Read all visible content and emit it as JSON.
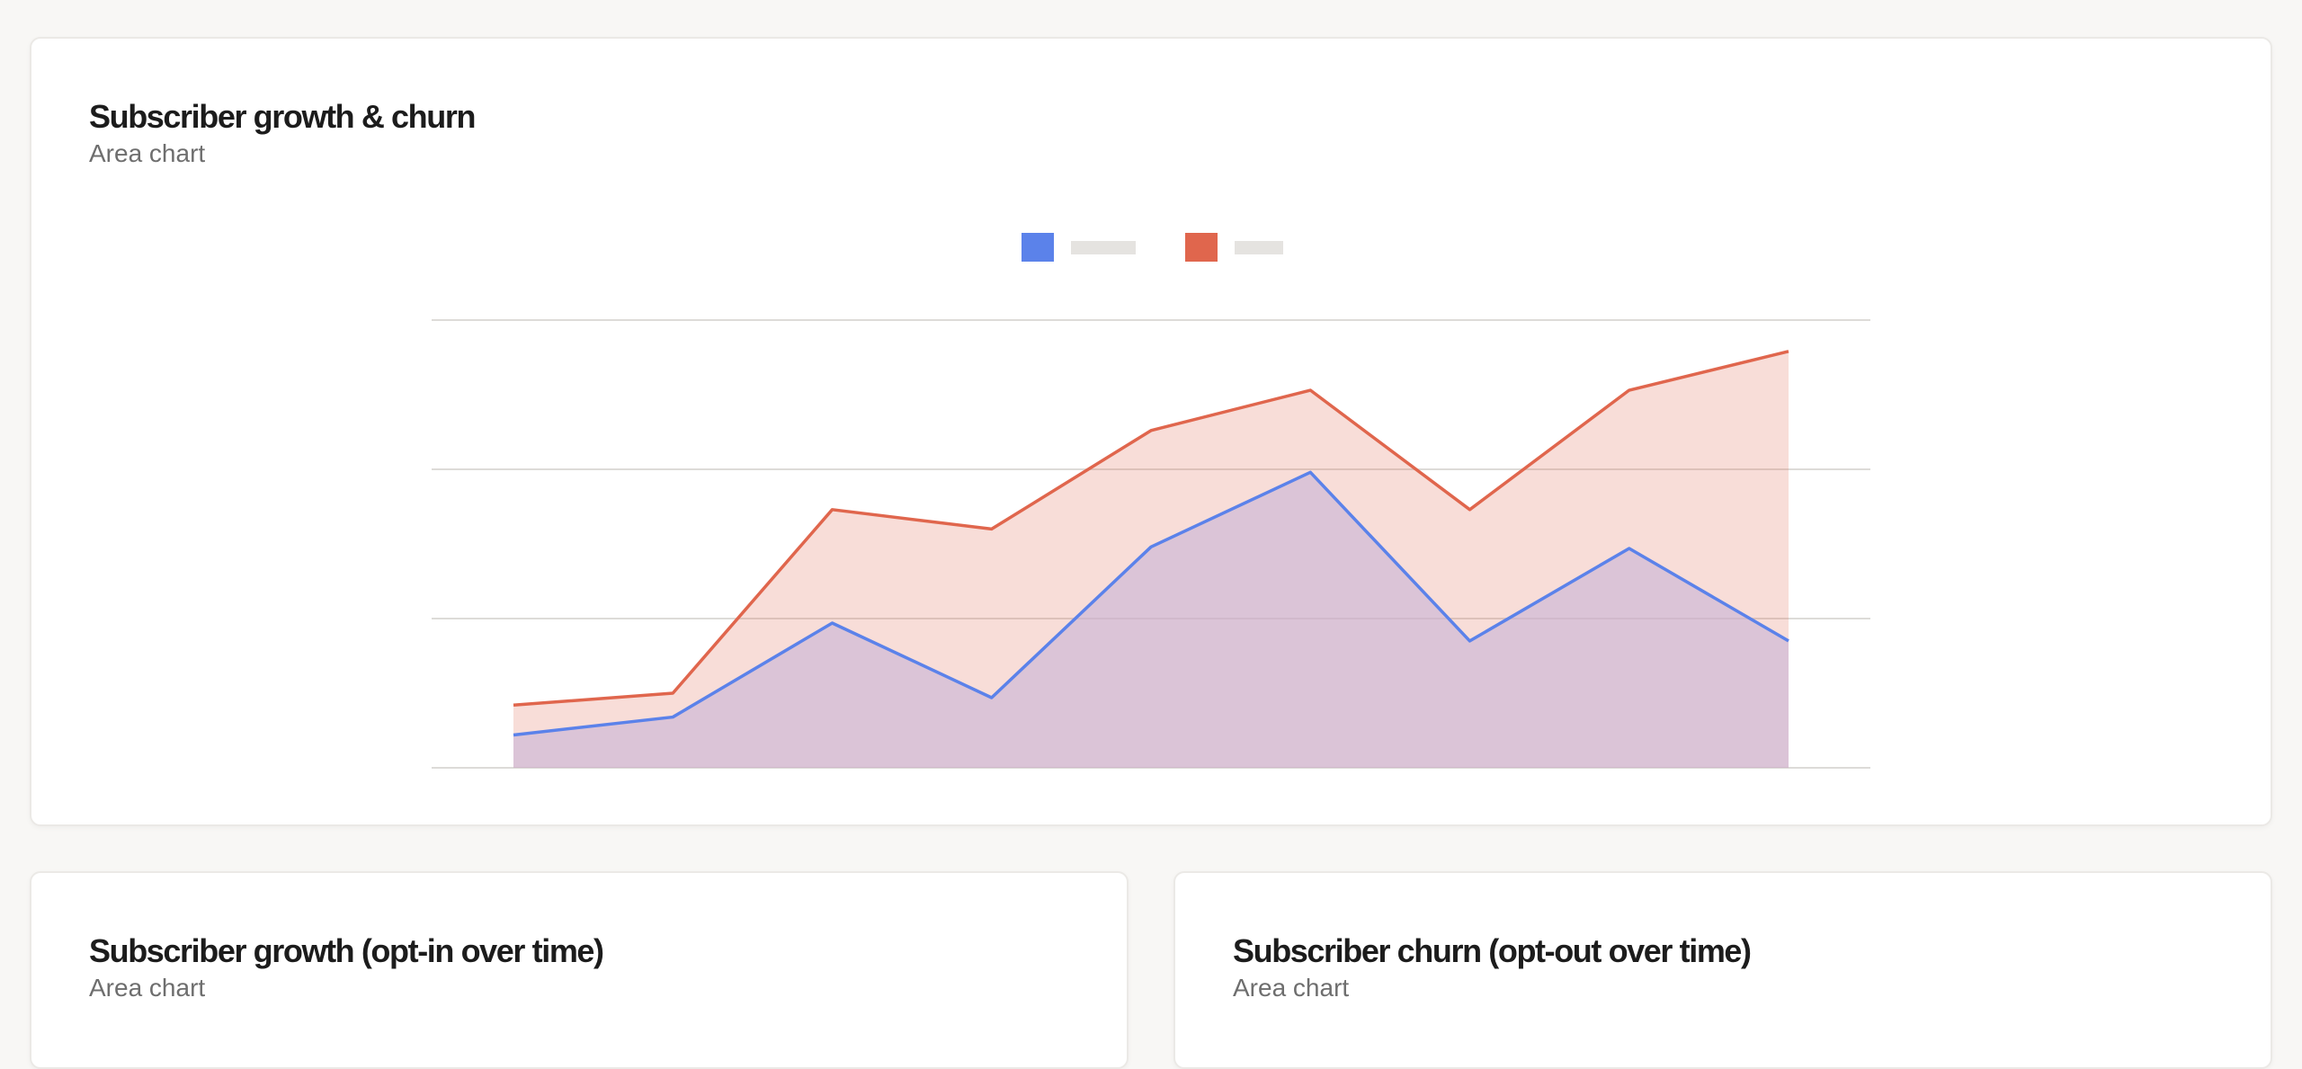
{
  "cards": {
    "main": {
      "title": "Subscriber growth & churn",
      "subtitle": "Area chart"
    },
    "growth": {
      "title": "Subscriber growth (opt-in over time)",
      "subtitle": "Area chart"
    },
    "churn": {
      "title": "Subscriber churn (opt-out over time)",
      "subtitle": "Area chart"
    }
  },
  "colors": {
    "growth": "#5b82ea",
    "churn": "#e0664d",
    "churn_fill": "#f5c2b8",
    "growth_fill": "#c9b4d6",
    "grid": "#dddbd8",
    "legend_placeholder": "#e5e3e0"
  },
  "chart_data": {
    "type": "area",
    "x": [
      1,
      2,
      3,
      4,
      5,
      6,
      7,
      8,
      9
    ],
    "ylim": [
      0,
      3
    ],
    "grid": true,
    "legend": "top-center",
    "series": [
      {
        "key": "growth",
        "values": [
          0.22,
          0.34,
          0.97,
          0.47,
          1.48,
          1.98,
          0.85,
          1.47,
          0.85
        ]
      },
      {
        "key": "churn",
        "values": [
          0.42,
          0.5,
          1.73,
          1.6,
          2.26,
          2.53,
          1.73,
          2.53,
          2.79
        ]
      }
    ]
  }
}
